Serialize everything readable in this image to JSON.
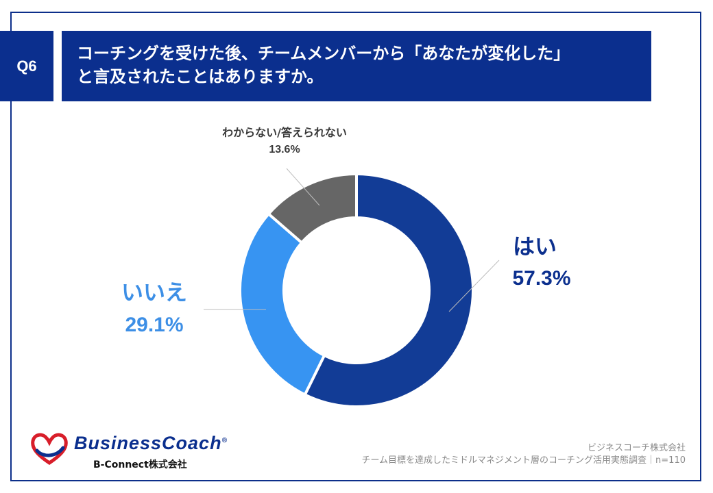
{
  "question": {
    "badge": "Q6",
    "line1": "コーチングを受けた後、チームメンバーから「あなたが変化した」",
    "line2": "と言及されたことはありますか。"
  },
  "chart_data": {
    "type": "pie",
    "donut": true,
    "slices": [
      {
        "label": "はい",
        "value": 57.3,
        "value_text": "57.3%",
        "color": "#123c96"
      },
      {
        "label": "いいえ",
        "value": 29.1,
        "value_text": "29.1%",
        "color": "#3794f2"
      },
      {
        "label": "わからない/答えられない",
        "value": 13.6,
        "value_text": "13.6%",
        "color": "#666666"
      }
    ]
  },
  "brand": {
    "name": "BusinessCoach",
    "registered": "®",
    "sub": "B-Connect株式会社"
  },
  "footer": {
    "line1": "ビジネスコーチ株式会社",
    "line2": "チーム目標を達成したミドルマネジメント層のコーチング活用実態調査｜n=110"
  }
}
